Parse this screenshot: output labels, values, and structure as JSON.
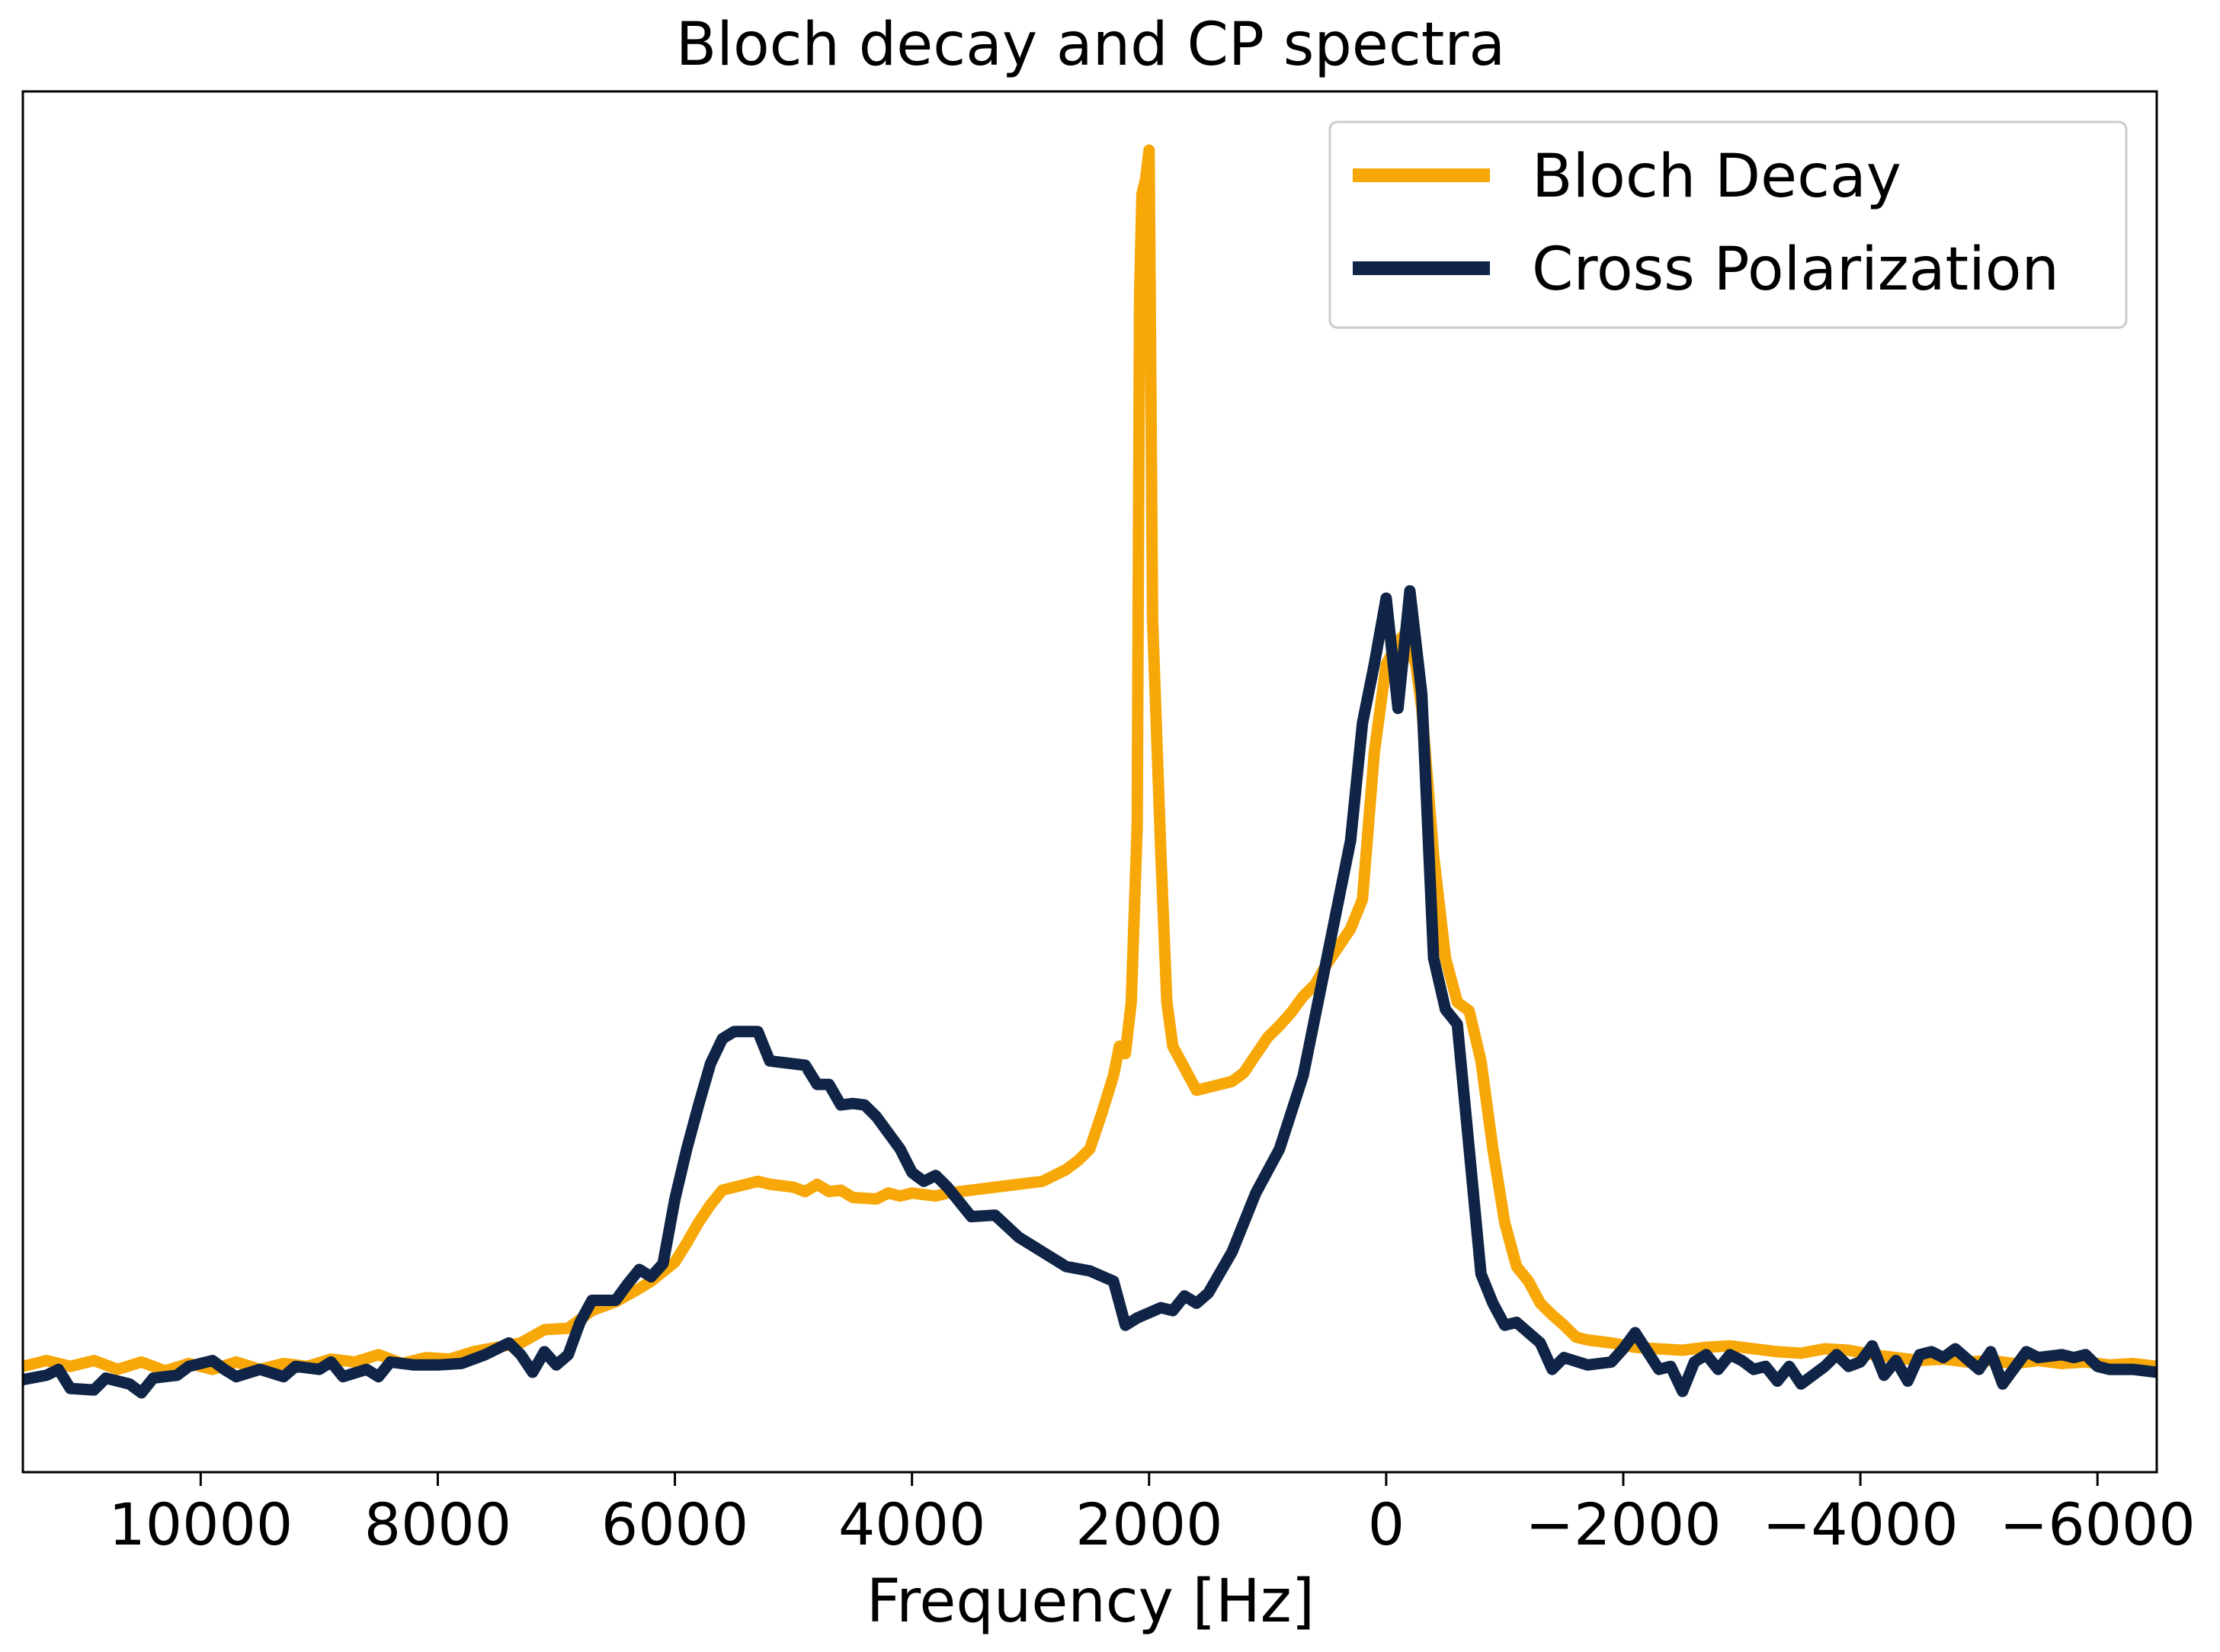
{
  "chart_data": {
    "type": "line",
    "title": "Bloch decay and CP spectra",
    "xlabel": "Frequency [Hz]",
    "ylabel": "",
    "x_reversed": true,
    "xlim": [
      11500,
      -6500
    ],
    "ylim": [
      -0.02,
      0.92
    ],
    "xticks": [
      10000,
      8000,
      6000,
      4000,
      2000,
      0,
      -2000,
      -4000,
      -6000
    ],
    "xtick_labels": [
      "10000",
      "8000",
      "6000",
      "4000",
      "2000",
      "0",
      "−2000",
      "−4000",
      "−6000"
    ],
    "yticks_visible": false,
    "grid": false,
    "legend": {
      "position": "top-right"
    },
    "series": [
      {
        "name": "Bloch Decay",
        "color": "#f7a707",
        "points": [
          [
            11500,
            0.052
          ],
          [
            11300,
            0.056
          ],
          [
            11100,
            0.052
          ],
          [
            10900,
            0.056
          ],
          [
            10700,
            0.05
          ],
          [
            10500,
            0.055
          ],
          [
            10300,
            0.049
          ],
          [
            10100,
            0.054
          ],
          [
            9900,
            0.05
          ],
          [
            9700,
            0.055
          ],
          [
            9500,
            0.05
          ],
          [
            9300,
            0.054
          ],
          [
            9100,
            0.052
          ],
          [
            8900,
            0.057
          ],
          [
            8700,
            0.055
          ],
          [
            8500,
            0.06
          ],
          [
            8300,
            0.054
          ],
          [
            8100,
            0.058
          ],
          [
            7900,
            0.057
          ],
          [
            7700,
            0.062
          ],
          [
            7500,
            0.065
          ],
          [
            7300,
            0.068
          ],
          [
            7100,
            0.077
          ],
          [
            6900,
            0.078
          ],
          [
            6700,
            0.09
          ],
          [
            6500,
            0.096
          ],
          [
            6300,
            0.105
          ],
          [
            6200,
            0.11
          ],
          [
            6000,
            0.123
          ],
          [
            5900,
            0.136
          ],
          [
            5800,
            0.15
          ],
          [
            5700,
            0.162
          ],
          [
            5600,
            0.172
          ],
          [
            5400,
            0.176
          ],
          [
            5300,
            0.178
          ],
          [
            5200,
            0.176
          ],
          [
            5100,
            0.175
          ],
          [
            5000,
            0.174
          ],
          [
            4900,
            0.171
          ],
          [
            4800,
            0.176
          ],
          [
            4700,
            0.171
          ],
          [
            4600,
            0.172
          ],
          [
            4500,
            0.167
          ],
          [
            4300,
            0.166
          ],
          [
            4200,
            0.17
          ],
          [
            4100,
            0.168
          ],
          [
            4000,
            0.17
          ],
          [
            3900,
            0.169
          ],
          [
            3800,
            0.168
          ],
          [
            3700,
            0.17
          ],
          [
            3500,
            0.172
          ],
          [
            3300,
            0.174
          ],
          [
            3100,
            0.176
          ],
          [
            2900,
            0.178
          ],
          [
            2700,
            0.186
          ],
          [
            2600,
            0.192
          ],
          [
            2500,
            0.2
          ],
          [
            2400,
            0.224
          ],
          [
            2300,
            0.25
          ],
          [
            2250,
            0.27
          ],
          [
            2200,
            0.265
          ],
          [
            2150,
            0.3
          ],
          [
            2100,
            0.42
          ],
          [
            2080,
            0.78
          ],
          [
            2060,
            0.85
          ],
          [
            2030,
            0.86
          ],
          [
            2000,
            0.88
          ],
          [
            1970,
            0.56
          ],
          [
            1900,
            0.4
          ],
          [
            1850,
            0.3
          ],
          [
            1800,
            0.27
          ],
          [
            1700,
            0.255
          ],
          [
            1600,
            0.24
          ],
          [
            1500,
            0.242
          ],
          [
            1400,
            0.244
          ],
          [
            1300,
            0.246
          ],
          [
            1200,
            0.252
          ],
          [
            1100,
            0.264
          ],
          [
            1000,
            0.276
          ],
          [
            900,
            0.284
          ],
          [
            800,
            0.293
          ],
          [
            700,
            0.304
          ],
          [
            600,
            0.312
          ],
          [
            500,
            0.326
          ],
          [
            400,
            0.338
          ],
          [
            300,
            0.35
          ],
          [
            200,
            0.37
          ],
          [
            100,
            0.47
          ],
          [
            0,
            0.53
          ],
          [
            -100,
            0.545
          ],
          [
            -150,
            0.55
          ],
          [
            -250,
            0.53
          ],
          [
            -300,
            0.5
          ],
          [
            -400,
            0.4
          ],
          [
            -500,
            0.33
          ],
          [
            -600,
            0.3
          ],
          [
            -700,
            0.294
          ],
          [
            -800,
            0.26
          ],
          [
            -900,
            0.2
          ],
          [
            -1000,
            0.15
          ],
          [
            -1100,
            0.12
          ],
          [
            -1200,
            0.11
          ],
          [
            -1300,
            0.095
          ],
          [
            -1400,
            0.087
          ],
          [
            -1500,
            0.08
          ],
          [
            -1600,
            0.072
          ],
          [
            -1700,
            0.07
          ],
          [
            -1900,
            0.068
          ],
          [
            -2100,
            0.065
          ],
          [
            -2300,
            0.064
          ],
          [
            -2500,
            0.063
          ],
          [
            -2700,
            0.065
          ],
          [
            -2900,
            0.066
          ],
          [
            -3100,
            0.064
          ],
          [
            -3300,
            0.062
          ],
          [
            -3500,
            0.061
          ],
          [
            -3700,
            0.064
          ],
          [
            -3900,
            0.063
          ],
          [
            -4100,
            0.06
          ],
          [
            -4300,
            0.058
          ],
          [
            -4500,
            0.056
          ],
          [
            -4700,
            0.057
          ],
          [
            -4900,
            0.055
          ],
          [
            -5100,
            0.056
          ],
          [
            -5300,
            0.054
          ],
          [
            -5500,
            0.056
          ],
          [
            -5700,
            0.054
          ],
          [
            -5900,
            0.055
          ],
          [
            -6100,
            0.053
          ],
          [
            -6300,
            0.054
          ],
          [
            -6500,
            0.052
          ]
        ]
      },
      {
        "name": "Cross Polarization",
        "color": "#0f2446",
        "points": [
          [
            11500,
            0.043
          ],
          [
            11300,
            0.046
          ],
          [
            11200,
            0.05
          ],
          [
            11100,
            0.037
          ],
          [
            10900,
            0.036
          ],
          [
            10800,
            0.044
          ],
          [
            10600,
            0.04
          ],
          [
            10500,
            0.034
          ],
          [
            10400,
            0.044
          ],
          [
            10200,
            0.046
          ],
          [
            10100,
            0.052
          ],
          [
            10000,
            0.054
          ],
          [
            9900,
            0.056
          ],
          [
            9800,
            0.05
          ],
          [
            9700,
            0.045
          ],
          [
            9500,
            0.05
          ],
          [
            9300,
            0.045
          ],
          [
            9200,
            0.052
          ],
          [
            9000,
            0.05
          ],
          [
            8900,
            0.055
          ],
          [
            8800,
            0.045
          ],
          [
            8600,
            0.05
          ],
          [
            8500,
            0.045
          ],
          [
            8400,
            0.055
          ],
          [
            8200,
            0.053
          ],
          [
            8000,
            0.053
          ],
          [
            7800,
            0.054
          ],
          [
            7600,
            0.06
          ],
          [
            7400,
            0.068
          ],
          [
            7300,
            0.06
          ],
          [
            7200,
            0.048
          ],
          [
            7100,
            0.062
          ],
          [
            7000,
            0.053
          ],
          [
            6900,
            0.06
          ],
          [
            6800,
            0.082
          ],
          [
            6700,
            0.097
          ],
          [
            6500,
            0.097
          ],
          [
            6400,
            0.108
          ],
          [
            6300,
            0.118
          ],
          [
            6200,
            0.113
          ],
          [
            6100,
            0.122
          ],
          [
            6000,
            0.166
          ],
          [
            5900,
            0.2
          ],
          [
            5800,
            0.23
          ],
          [
            5700,
            0.258
          ],
          [
            5600,
            0.275
          ],
          [
            5500,
            0.28
          ],
          [
            5300,
            0.28
          ],
          [
            5200,
            0.26
          ],
          [
            4900,
            0.257
          ],
          [
            4800,
            0.244
          ],
          [
            4700,
            0.244
          ],
          [
            4600,
            0.23
          ],
          [
            4500,
            0.231
          ],
          [
            4400,
            0.23
          ],
          [
            4300,
            0.222
          ],
          [
            4100,
            0.2
          ],
          [
            4000,
            0.184
          ],
          [
            3900,
            0.178
          ],
          [
            3800,
            0.182
          ],
          [
            3700,
            0.174
          ],
          [
            3500,
            0.154
          ],
          [
            3300,
            0.155
          ],
          [
            3100,
            0.14
          ],
          [
            2900,
            0.13
          ],
          [
            2700,
            0.12
          ],
          [
            2500,
            0.117
          ],
          [
            2300,
            0.11
          ],
          [
            2200,
            0.08
          ],
          [
            2100,
            0.085
          ],
          [
            1900,
            0.092
          ],
          [
            1800,
            0.09
          ],
          [
            1700,
            0.1
          ],
          [
            1600,
            0.095
          ],
          [
            1500,
            0.102
          ],
          [
            1300,
            0.13
          ],
          [
            1100,
            0.17
          ],
          [
            900,
            0.2
          ],
          [
            700,
            0.25
          ],
          [
            500,
            0.33
          ],
          [
            300,
            0.41
          ],
          [
            200,
            0.49
          ],
          [
            100,
            0.53
          ],
          [
            0,
            0.575
          ],
          [
            -100,
            0.5
          ],
          [
            -200,
            0.58
          ],
          [
            -300,
            0.51
          ],
          [
            -400,
            0.33
          ],
          [
            -500,
            0.295
          ],
          [
            -600,
            0.285
          ],
          [
            -700,
            0.2
          ],
          [
            -800,
            0.115
          ],
          [
            -900,
            0.095
          ],
          [
            -1000,
            0.08
          ],
          [
            -1100,
            0.082
          ],
          [
            -1200,
            0.075
          ],
          [
            -1300,
            0.068
          ],
          [
            -1400,
            0.05
          ],
          [
            -1500,
            0.058
          ],
          [
            -1700,
            0.053
          ],
          [
            -1900,
            0.055
          ],
          [
            -2000,
            0.064
          ],
          [
            -2100,
            0.075
          ],
          [
            -2300,
            0.05
          ],
          [
            -2400,
            0.052
          ],
          [
            -2500,
            0.035
          ],
          [
            -2600,
            0.055
          ],
          [
            -2700,
            0.06
          ],
          [
            -2800,
            0.05
          ],
          [
            -2900,
            0.06
          ],
          [
            -3000,
            0.056
          ],
          [
            -3100,
            0.05
          ],
          [
            -3200,
            0.052
          ],
          [
            -3300,
            0.042
          ],
          [
            -3400,
            0.052
          ],
          [
            -3500,
            0.04
          ],
          [
            -3700,
            0.052
          ],
          [
            -3800,
            0.06
          ],
          [
            -3900,
            0.052
          ],
          [
            -4000,
            0.055
          ],
          [
            -4100,
            0.066
          ],
          [
            -4200,
            0.046
          ],
          [
            -4300,
            0.056
          ],
          [
            -4400,
            0.042
          ],
          [
            -4500,
            0.06
          ],
          [
            -4600,
            0.062
          ],
          [
            -4700,
            0.058
          ],
          [
            -4800,
            0.064
          ],
          [
            -5000,
            0.05
          ],
          [
            -5100,
            0.062
          ],
          [
            -5200,
            0.04
          ],
          [
            -5400,
            0.062
          ],
          [
            -5500,
            0.058
          ],
          [
            -5700,
            0.06
          ],
          [
            -5800,
            0.058
          ],
          [
            -5900,
            0.06
          ],
          [
            -6000,
            0.052
          ],
          [
            -6100,
            0.05
          ],
          [
            -6300,
            0.05
          ],
          [
            -6500,
            0.048
          ]
        ]
      }
    ]
  }
}
